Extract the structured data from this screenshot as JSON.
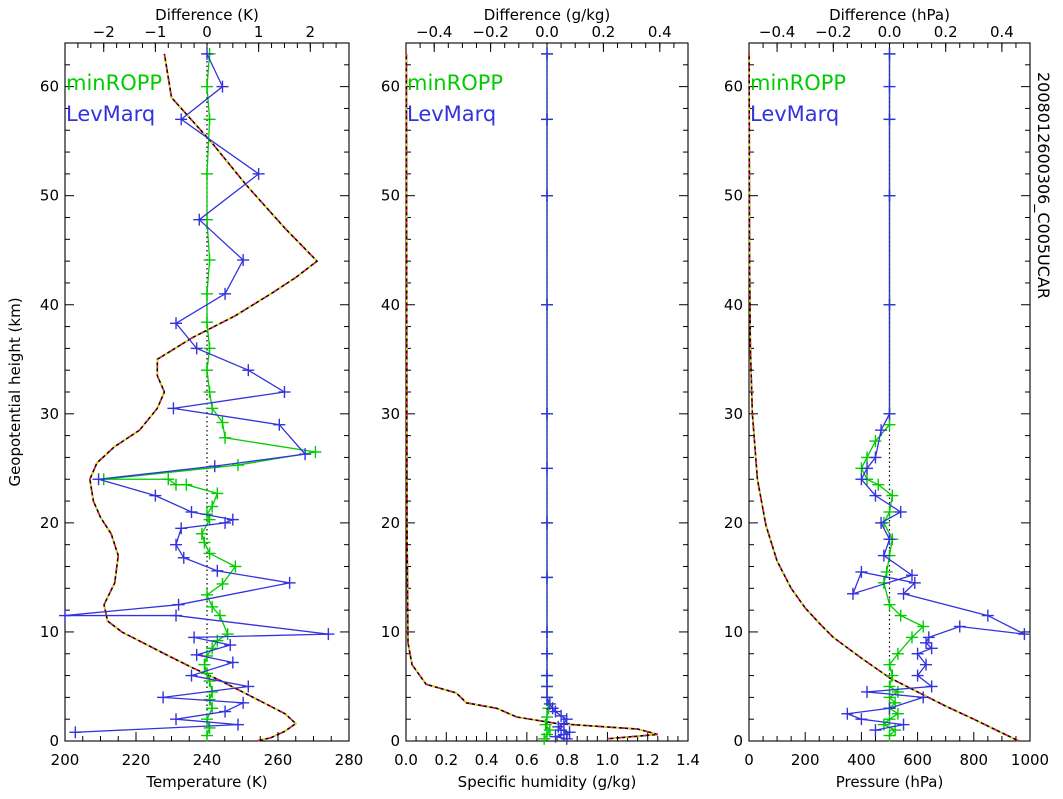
{
  "chart_data": [
    {
      "type": "line",
      "panel": "temperature",
      "xlabel": "Temperature (K)",
      "x2label": "Difference (K)",
      "ylabel": "Geopotential height (km)",
      "xlim": [
        200,
        280
      ],
      "xticks": [
        200,
        220,
        240,
        260,
        280
      ],
      "x2lim": [
        -2.75,
        2.75
      ],
      "x2ticks": [
        -2,
        -1,
        0,
        1,
        2
      ],
      "ylim": [
        0,
        64
      ],
      "yticks": [
        0,
        10,
        20,
        30,
        40,
        50,
        60
      ],
      "legend": [
        "minROPP",
        "LevMarq"
      ],
      "profile": {
        "x": [
          254,
          258,
          262,
          265,
          262,
          256,
          250,
          244,
          236,
          228,
          222,
          216,
          212,
          211,
          214,
          215,
          213,
          210,
          208,
          207,
          209,
          214,
          221,
          226,
          228,
          226,
          226,
          236,
          248,
          258,
          265,
          271,
          262,
          251,
          241,
          230,
          228
        ],
        "y": [
          0,
          0.3,
          0.9,
          1.6,
          2.5,
          3.5,
          4.5,
          5.5,
          6.7,
          8,
          9,
          10,
          11,
          12.5,
          14.5,
          17,
          19,
          20.5,
          22,
          24,
          25.5,
          27,
          28.5,
          30.5,
          32,
          33.5,
          35,
          37,
          39,
          41,
          42.5,
          44,
          47,
          51,
          55,
          59,
          63
        ]
      },
      "series": [
        {
          "name": "minROPP",
          "color": "#00cc00",
          "x": [
            0.0,
            0.05,
            0.0,
            0.1,
            0.05,
            0.1,
            0.05,
            0.0,
            -0.05,
            0.0,
            0.1,
            0.2,
            0.4,
            0.25,
            0.1,
            0.0,
            0.3,
            0.55,
            0.05,
            -0.05,
            -0.1,
            0.05,
            0.0,
            0.1,
            0.2,
            -0.4,
            -0.6,
            -0.75,
            -2.0,
            0.6,
            2.1,
            0.35,
            0.3,
            0.1,
            0.05,
            0.0,
            0.05,
            0.0,
            0.0,
            0.05,
            0.0,
            0.0,
            0.05,
            0.0,
            0.05
          ],
          "y": [
            0.5,
            1.2,
            2.0,
            3.0,
            3.8,
            4.5,
            5.5,
            6.2,
            7.0,
            7.8,
            8.5,
            9.2,
            9.8,
            11.5,
            12.3,
            13.4,
            14.4,
            16.0,
            17.2,
            18.2,
            19.0,
            20.3,
            20.8,
            21.5,
            22.7,
            23.5,
            23.5,
            24.0,
            24.0,
            25.3,
            26.5,
            27.8,
            29.2,
            30.5,
            32.0,
            34.0,
            36.0,
            38.4,
            41.0,
            44.1,
            47.8,
            52.0,
            57.0,
            60.0,
            63.0
          ]
        },
        {
          "name": "LevMarq",
          "color": "#3333dd",
          "x": [
            -2.55,
            0.6,
            -0.6,
            0.35,
            0.7,
            -0.85,
            0.8,
            -0.3,
            0.5,
            -0.2,
            0.45,
            -0.25,
            2.35,
            -0.6,
            -2.75,
            -0.55,
            1.6,
            0.2,
            -0.45,
            -0.6,
            -0.5,
            0.35,
            0.5,
            -0.3,
            -1.0,
            -2.1,
            0.15,
            1.9,
            1.4,
            -0.65,
            1.5,
            0.8,
            -0.2,
            -0.6,
            0.35,
            0.7,
            -0.15,
            1.0,
            -0.5,
            0.3,
            0.0
          ],
          "y": [
            0.8,
            1.5,
            2.0,
            2.7,
            3.5,
            4.0,
            5.0,
            6.0,
            7.2,
            7.9,
            8.8,
            9.5,
            9.8,
            11.5,
            11.5,
            12.5,
            14.5,
            15.6,
            16.8,
            18.0,
            19.5,
            20.0,
            20.3,
            21.0,
            22.5,
            24.0,
            25.2,
            26.3,
            29.0,
            30.5,
            32.0,
            34.0,
            36.0,
            38.3,
            41.0,
            44.1,
            47.8,
            52.0,
            57.0,
            60.0,
            63.0
          ]
        }
      ]
    },
    {
      "type": "line",
      "panel": "humidity",
      "xlabel": "Specific humidity (g/kg)",
      "x2label": "Difference (g/kg)",
      "xlim": [
        0.0,
        1.4
      ],
      "xticks": [
        0.0,
        0.2,
        0.4,
        0.6,
        0.8,
        1.0,
        1.2,
        1.4
      ],
      "x2lim": [
        -0.5,
        0.5
      ],
      "x2ticks": [
        -0.4,
        -0.2,
        0.0,
        0.2,
        0.4
      ],
      "ylim": [
        0,
        64
      ],
      "yticks": [
        0,
        10,
        20,
        30,
        40,
        50,
        60
      ],
      "legend": [
        "minROPP",
        "LevMarq"
      ],
      "profile": {
        "x": [
          1.0,
          1.25,
          1.15,
          0.75,
          0.55,
          0.45,
          0.3,
          0.25,
          0.1,
          0.03,
          0.01,
          0.005,
          0.002
        ],
        "y": [
          0.2,
          0.6,
          1.1,
          1.6,
          2.2,
          3.0,
          3.5,
          4.4,
          5.2,
          7,
          9,
          20,
          63
        ]
      },
      "series": [
        {
          "name": "minROPP",
          "color": "#00cc00",
          "x": [
            -0.01,
            0.0,
            0.01,
            -0.005,
            0.0,
            0.005,
            0.0,
            0.0,
            0.0,
            0.0,
            0.0,
            0.0,
            0.0,
            0.0,
            0.0,
            0.0,
            0.0,
            0.0
          ],
          "y": [
            0.2,
            0.6,
            1.0,
            1.5,
            2.2,
            3.0,
            4.0,
            5.0,
            6.0,
            8.0,
            10.0,
            15.0,
            20.0,
            30.0,
            40.0,
            50.0,
            57.0,
            63.0
          ]
        },
        {
          "name": "LevMarq",
          "color": "#3333dd",
          "x": [
            0.07,
            0.03,
            0.06,
            0.08,
            0.05,
            0.04,
            0.06,
            0.07,
            0.05,
            0.03,
            0.02,
            0.01,
            0.0,
            0.0,
            0.0,
            0.0,
            0.0,
            0.0,
            0.0,
            0.0,
            0.0,
            0.0,
            0.0,
            0.0,
            0.0
          ],
          "y": [
            0.2,
            0.4,
            0.6,
            0.8,
            1.0,
            1.3,
            1.6,
            2.0,
            2.3,
            2.7,
            3.0,
            3.4,
            4.0,
            5.0,
            6.0,
            8.0,
            10.0,
            15.0,
            20.0,
            25.0,
            30.0,
            40.0,
            50.0,
            57.0,
            63.0
          ]
        }
      ]
    },
    {
      "type": "line",
      "panel": "pressure",
      "xlabel": "Pressure (hPa)",
      "x2label": "Difference (hPa)",
      "xlim": [
        0,
        1000
      ],
      "xticks": [
        0,
        200,
        400,
        600,
        800,
        1000
      ],
      "x2lim": [
        -0.5,
        0.5
      ],
      "x2ticks": [
        -0.4,
        -0.2,
        0.0,
        0.2,
        0.4
      ],
      "ylim": [
        0,
        64
      ],
      "yticks": [
        0,
        10,
        20,
        30,
        40,
        50,
        60
      ],
      "legend": [
        "minROPP",
        "LevMarq"
      ],
      "profile": {
        "x": [
          960,
          880,
          800,
          700,
          600,
          500,
          400,
          300,
          250,
          200,
          150,
          100,
          60,
          30,
          12,
          5,
          2,
          0.5
        ],
        "y": [
          0,
          1,
          2,
          3.2,
          4.5,
          5.8,
          7.6,
          9.5,
          10.8,
          12.2,
          14,
          16.5,
          19.8,
          24,
          30,
          36,
          44,
          63
        ]
      },
      "series": [
        {
          "name": "minROPP",
          "color": "#00cc00",
          "x": [
            0.0,
            0.02,
            -0.02,
            0.0,
            0.03,
            0.0,
            0.02,
            0.0,
            0.03,
            0.0,
            0.01,
            0.0,
            0.03,
            0.08,
            0.12,
            0.04,
            0.0,
            -0.02,
            -0.01,
            0.0,
            0.01,
            -0.02,
            0.0,
            0.01,
            -0.04,
            -0.08,
            -0.1,
            -0.08,
            -0.05,
            0.0,
            0.0,
            0.0,
            0.0,
            0.0,
            0.0
          ],
          "y": [
            0.5,
            1.0,
            1.5,
            2.0,
            2.5,
            3.0,
            3.5,
            4.0,
            4.5,
            5.0,
            6.0,
            7.0,
            8.0,
            9.5,
            10.5,
            11.5,
            12.5,
            14.5,
            15.5,
            17.0,
            18.5,
            20.0,
            21.0,
            22.5,
            23.5,
            24.0,
            25.0,
            26.0,
            27.5,
            29.0,
            30.0,
            40.0,
            50.0,
            57.0,
            63.0
          ]
        },
        {
          "name": "LevMarq",
          "color": "#3333dd",
          "x": [
            -0.05,
            0.05,
            -0.1,
            -0.15,
            0.0,
            0.12,
            -0.08,
            0.15,
            0.1,
            0.13,
            0.1,
            0.15,
            0.13,
            0.14,
            0.25,
            0.48,
            0.35,
            0.05,
            0.09,
            -0.1,
            -0.13,
            0.08,
            -0.02,
            0.0,
            -0.03,
            0.04,
            -0.05,
            -0.1,
            -0.08,
            -0.05,
            -0.03,
            0.0,
            0.0,
            0.0,
            0.0,
            0.0,
            0.0
          ],
          "y": [
            1.0,
            1.5,
            2.0,
            2.5,
            3.0,
            4.0,
            4.5,
            5.0,
            6.0,
            7.0,
            8.0,
            8.5,
            9.0,
            9.5,
            10.5,
            9.8,
            11.5,
            13.5,
            14.5,
            15.5,
            13.5,
            15.2,
            17.0,
            18.5,
            20.0,
            21.0,
            22.5,
            24.0,
            25.0,
            26.0,
            28.5,
            30.0,
            40.0,
            50.0,
            57.0,
            60.0,
            63.0
          ]
        }
      ]
    }
  ],
  "side_label": "2008012600306_C005UCAR"
}
